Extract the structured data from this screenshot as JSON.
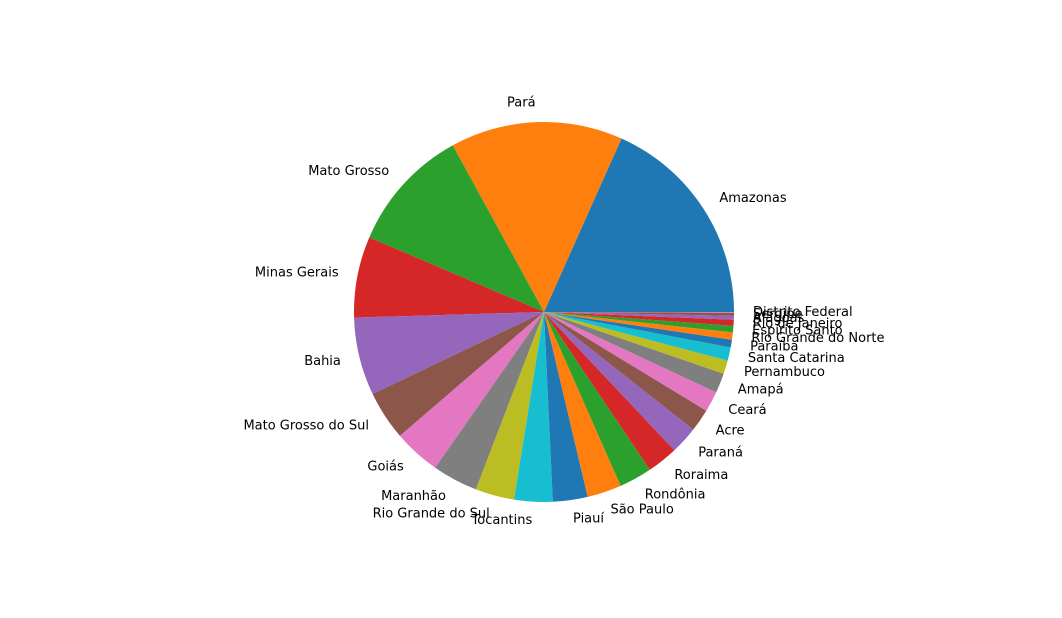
{
  "chart_data": {
    "type": "pie",
    "start_angle_deg": 0,
    "direction": "counterclockwise",
    "legend": "none",
    "slices": [
      {
        "label": "Amazonas",
        "value": 1559161,
        "color": "#1f77b4"
      },
      {
        "label": "Pará",
        "value": 1247955,
        "color": "#ff7f0e"
      },
      {
        "label": "Mato Grosso",
        "value": 903207,
        "color": "#2ca02c"
      },
      {
        "label": "Minas Gerais",
        "value": 586528,
        "color": "#d62728"
      },
      {
        "label": "Bahia",
        "value": 564733,
        "color": "#9467bd"
      },
      {
        "label": "Mato Grosso do Sul",
        "value": 357146,
        "color": "#8c564b"
      },
      {
        "label": "Goiás",
        "value": 340112,
        "color": "#e377c2"
      },
      {
        "label": "Maranhão",
        "value": 329643,
        "color": "#7f7f7f"
      },
      {
        "label": "Rio Grande do Sul",
        "value": 281730,
        "color": "#bcbd22"
      },
      {
        "label": "Tocantins",
        "value": 277721,
        "color": "#17becf"
      },
      {
        "label": "Piauí",
        "value": 251578,
        "color": "#1f77b4"
      },
      {
        "label": "São Paulo",
        "value": 248222,
        "color": "#ff7f0e"
      },
      {
        "label": "Rondônia",
        "value": 237591,
        "color": "#2ca02c"
      },
      {
        "label": "Roraima",
        "value": 224300,
        "color": "#d62728"
      },
      {
        "label": "Paraná",
        "value": 199307,
        "color": "#9467bd"
      },
      {
        "label": "Acre",
        "value": 164123,
        "color": "#8c564b"
      },
      {
        "label": "Ceará",
        "value": 148920,
        "color": "#e377c2"
      },
      {
        "label": "Amapá",
        "value": 142829,
        "color": "#7f7f7f"
      },
      {
        "label": "Pernambuco",
        "value": 98148,
        "color": "#bcbd22"
      },
      {
        "label": "Santa Catarina",
        "value": 95736,
        "color": "#17becf"
      },
      {
        "label": "Paraíba",
        "value": 56470,
        "color": "#1f77b4"
      },
      {
        "label": "Rio Grande do Norte",
        "value": 52811,
        "color": "#ff7f0e"
      },
      {
        "label": "Espírito Santo",
        "value": 46095,
        "color": "#2ca02c"
      },
      {
        "label": "Rio de Janeiro",
        "value": 43780,
        "color": "#d62728"
      },
      {
        "label": "Alagoas",
        "value": 27778,
        "color": "#9467bd"
      },
      {
        "label": "Sergipe",
        "value": 21915,
        "color": "#8c564b"
      },
      {
        "label": "Distrito Federal",
        "value": 5780,
        "color": "#e377c2"
      }
    ]
  }
}
